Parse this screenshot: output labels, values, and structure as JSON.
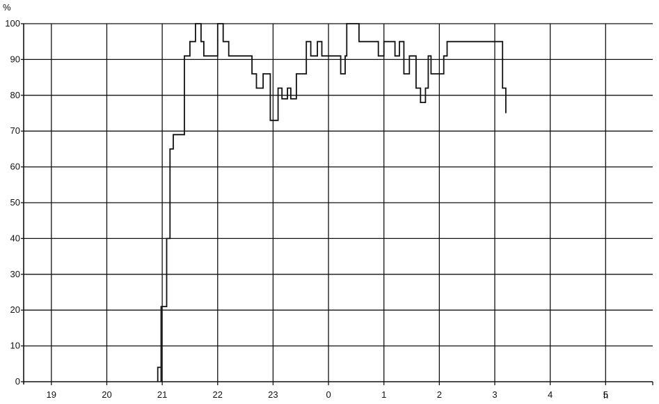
{
  "chart_data": {
    "type": "line",
    "title": "",
    "xlabel": "h",
    "ylabel": "%",
    "ylim": [
      0,
      100
    ],
    "y_ticks": [
      0,
      10,
      20,
      30,
      40,
      50,
      60,
      70,
      80,
      90,
      100
    ],
    "x_ticks": [
      "19",
      "20",
      "21",
      "22",
      "23",
      "0",
      "1",
      "2",
      "3",
      "4",
      "5"
    ],
    "x_range_hours": [
      18.5,
      29.85
    ],
    "grid": true,
    "line_style": "step",
    "series": [
      {
        "points": [
          [
            20.92,
            0
          ],
          [
            20.92,
            4
          ],
          [
            20.98,
            4
          ],
          [
            20.98,
            0
          ],
          [
            20.98,
            21
          ],
          [
            21.08,
            21
          ],
          [
            21.08,
            40
          ],
          [
            21.14,
            40
          ],
          [
            21.14,
            65
          ],
          [
            21.2,
            65
          ],
          [
            21.2,
            69
          ],
          [
            21.4,
            69
          ],
          [
            21.4,
            91
          ],
          [
            21.5,
            91
          ],
          [
            21.5,
            95
          ],
          [
            21.6,
            95
          ],
          [
            21.6,
            100
          ],
          [
            21.7,
            100
          ],
          [
            21.7,
            95
          ],
          [
            21.75,
            95
          ],
          [
            21.75,
            91
          ],
          [
            22.0,
            91
          ],
          [
            22.0,
            100
          ],
          [
            22.1,
            100
          ],
          [
            22.1,
            95
          ],
          [
            22.2,
            95
          ],
          [
            22.2,
            91
          ],
          [
            22.62,
            91
          ],
          [
            22.62,
            86
          ],
          [
            22.7,
            86
          ],
          [
            22.7,
            82
          ],
          [
            22.82,
            82
          ],
          [
            22.82,
            86
          ],
          [
            22.95,
            86
          ],
          [
            22.95,
            73
          ],
          [
            23.09,
            73
          ],
          [
            23.09,
            82
          ],
          [
            23.16,
            82
          ],
          [
            23.16,
            79
          ],
          [
            23.26,
            79
          ],
          [
            23.26,
            82
          ],
          [
            23.32,
            82
          ],
          [
            23.32,
            79
          ],
          [
            23.42,
            79
          ],
          [
            23.42,
            86
          ],
          [
            23.6,
            86
          ],
          [
            23.6,
            95
          ],
          [
            23.68,
            95
          ],
          [
            23.68,
            91
          ],
          [
            23.8,
            91
          ],
          [
            23.8,
            95
          ],
          [
            23.88,
            95
          ],
          [
            23.88,
            91
          ],
          [
            24.22,
            91
          ],
          [
            24.22,
            86
          ],
          [
            24.3,
            86
          ],
          [
            24.3,
            91
          ],
          [
            24.33,
            91
          ],
          [
            24.33,
            100
          ],
          [
            24.55,
            100
          ],
          [
            24.55,
            95
          ],
          [
            24.9,
            95
          ],
          [
            24.9,
            91
          ],
          [
            25.0,
            91
          ],
          [
            25.0,
            95
          ],
          [
            25.2,
            95
          ],
          [
            25.2,
            91
          ],
          [
            25.28,
            91
          ],
          [
            25.28,
            95
          ],
          [
            25.36,
            95
          ],
          [
            25.36,
            86
          ],
          [
            25.46,
            86
          ],
          [
            25.46,
            91
          ],
          [
            25.58,
            91
          ],
          [
            25.58,
            82
          ],
          [
            25.66,
            82
          ],
          [
            25.66,
            78
          ],
          [
            25.75,
            78
          ],
          [
            25.75,
            82
          ],
          [
            25.8,
            82
          ],
          [
            25.8,
            91
          ],
          [
            25.85,
            91
          ],
          [
            25.85,
            86
          ],
          [
            26.08,
            86
          ],
          [
            26.08,
            91
          ],
          [
            26.14,
            91
          ],
          [
            26.14,
            95
          ],
          [
            27.14,
            95
          ],
          [
            27.14,
            82
          ],
          [
            27.2,
            82
          ],
          [
            27.2,
            75
          ]
        ]
      }
    ]
  }
}
